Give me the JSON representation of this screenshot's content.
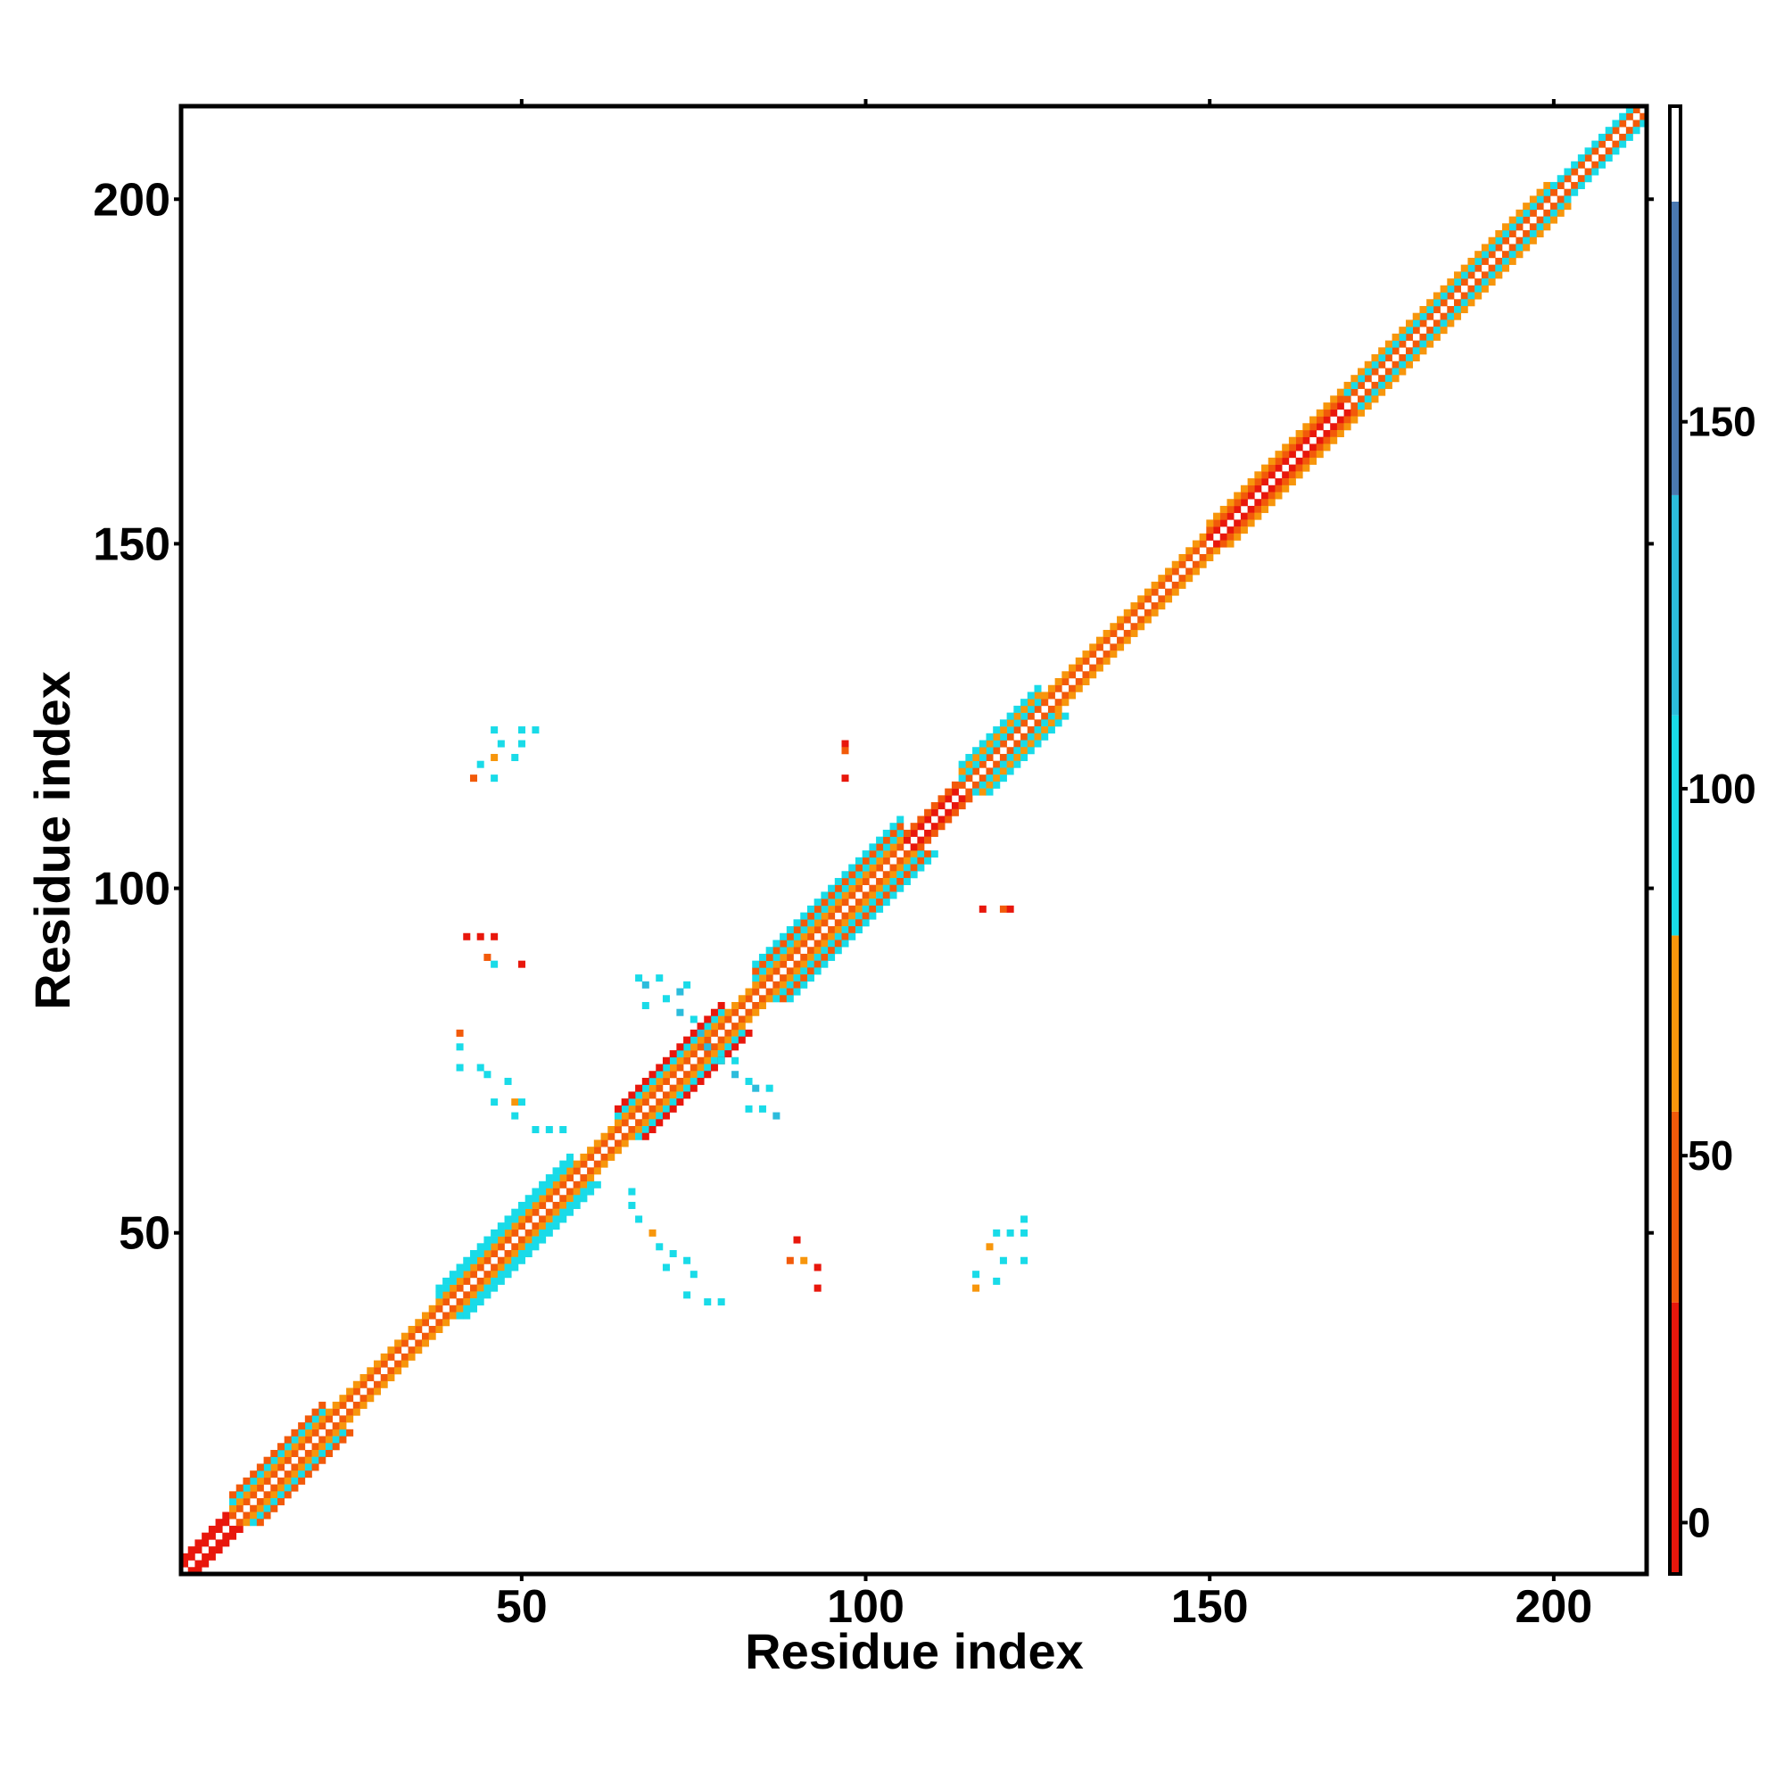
{
  "chart_data": {
    "type": "heatmap",
    "xlabel": "Residue index",
    "ylabel": "Residue index",
    "xlim": [
      0.5,
      213.5
    ],
    "ylim": [
      0.5,
      213.5
    ],
    "xticks": [
      50,
      100,
      150,
      200
    ],
    "yticks": [
      50,
      100,
      150,
      200
    ],
    "colorbar": {
      "lim": [
        -7,
        193
      ],
      "ticks": [
        0,
        50,
        100,
        150
      ],
      "bins": [
        -7,
        30,
        56,
        80,
        110,
        140,
        180,
        193
      ],
      "colors": [
        "#e8170c",
        "#f25a0a",
        "#f7960c",
        "#19dbe8",
        "#2cbcdc",
        "#4a78b0",
        "#ffffff"
      ]
    },
    "diagonal_bands": [
      {
        "start": 1,
        "end": 8,
        "values": [
          10,
          20
        ]
      },
      {
        "start": 8,
        "end": 22,
        "values": [
          40,
          65,
          100,
          45
        ]
      },
      {
        "start": 22,
        "end": 38,
        "values": [
          40,
          65
        ]
      },
      {
        "start": 38,
        "end": 58,
        "values": [
          40,
          65,
          100,
          100
        ]
      },
      {
        "start": 58,
        "end": 64,
        "values": [
          40,
          65
        ]
      },
      {
        "start": 64,
        "end": 80,
        "values": [
          40,
          65,
          100,
          20
        ]
      },
      {
        "start": 80,
        "end": 84,
        "values": [
          40,
          65
        ]
      },
      {
        "start": 84,
        "end": 106,
        "values": [
          40,
          65,
          100,
          45,
          100
        ]
      },
      {
        "start": 106,
        "end": 114,
        "values": [
          20,
          40
        ]
      },
      {
        "start": 114,
        "end": 126,
        "values": [
          40,
          100,
          65,
          100
        ]
      },
      {
        "start": 126,
        "end": 150,
        "values": [
          40,
          65
        ]
      },
      {
        "start": 150,
        "end": 170,
        "values": [
          20,
          45,
          65
        ]
      },
      {
        "start": 170,
        "end": 200,
        "values": [
          40,
          100,
          65
        ]
      },
      {
        "start": 200,
        "end": 214,
        "values": [
          40,
          100
        ]
      }
    ],
    "contacts": [
      [
        43,
        116,
        40
      ],
      [
        44,
        118,
        100
      ],
      [
        46,
        116,
        100
      ],
      [
        46,
        119,
        65
      ],
      [
        47,
        121,
        100
      ],
      [
        49,
        119,
        100
      ],
      [
        50,
        121,
        100
      ],
      [
        50,
        123,
        100
      ],
      [
        52,
        123,
        100
      ],
      [
        46,
        123,
        100
      ],
      [
        42,
        93,
        20
      ],
      [
        44,
        93,
        20
      ],
      [
        46,
        93,
        20
      ],
      [
        45,
        90,
        40
      ],
      [
        46,
        89,
        100
      ],
      [
        50,
        89,
        20
      ],
      [
        41,
        79,
        40
      ],
      [
        41,
        77,
        100
      ],
      [
        41,
        74,
        100
      ],
      [
        44,
        74,
        100
      ],
      [
        45,
        73,
        100
      ],
      [
        48,
        72,
        100
      ],
      [
        46,
        69,
        100
      ],
      [
        49,
        69,
        65
      ],
      [
        50,
        69,
        100
      ],
      [
        49,
        67,
        100
      ],
      [
        52,
        65,
        100
      ],
      [
        54,
        65,
        100
      ],
      [
        56,
        65,
        100
      ],
      [
        67,
        87,
        100
      ],
      [
        68,
        86,
        130
      ],
      [
        70,
        87,
        100
      ],
      [
        71,
        84,
        100
      ],
      [
        73,
        85,
        130
      ],
      [
        74,
        86,
        100
      ],
      [
        68,
        83,
        100
      ],
      [
        73,
        82,
        130
      ],
      [
        75,
        81,
        100
      ],
      [
        76,
        79,
        130
      ],
      [
        77,
        77,
        130
      ],
      [
        79,
        75,
        100
      ],
      [
        81,
        75,
        100
      ],
      [
        81,
        73,
        130
      ],
      [
        83,
        72,
        100
      ],
      [
        84,
        71,
        130
      ],
      [
        86,
        71,
        100
      ],
      [
        85,
        68,
        100
      ],
      [
        87,
        67,
        130
      ],
      [
        83,
        68,
        100
      ],
      [
        66,
        56,
        100
      ],
      [
        66,
        54,
        100
      ],
      [
        67,
        52,
        100
      ],
      [
        69,
        50,
        65
      ],
      [
        70,
        48,
        100
      ],
      [
        72,
        47,
        100
      ],
      [
        71,
        45,
        100
      ],
      [
        74,
        46,
        100
      ],
      [
        75,
        44,
        100
      ],
      [
        74,
        41,
        100
      ],
      [
        77,
        40,
        100
      ],
      [
        79,
        40,
        100
      ],
      [
        90,
        49,
        20
      ],
      [
        89,
        46,
        40
      ],
      [
        91,
        46,
        65
      ],
      [
        93,
        45,
        20
      ],
      [
        93,
        42,
        20
      ],
      [
        119,
        50,
        100
      ],
      [
        121,
        50,
        100
      ],
      [
        123,
        50,
        100
      ],
      [
        123,
        52,
        100
      ],
      [
        118,
        48,
        65
      ],
      [
        120,
        46,
        100
      ],
      [
        123,
        46,
        100
      ],
      [
        116,
        44,
        100
      ],
      [
        116,
        42,
        65
      ],
      [
        119,
        43,
        100
      ],
      [
        97,
        121,
        20
      ],
      [
        97,
        120,
        40
      ],
      [
        97,
        116,
        20
      ],
      [
        117,
        97,
        20
      ],
      [
        120,
        97,
        40
      ],
      [
        121,
        97,
        20
      ]
    ]
  }
}
